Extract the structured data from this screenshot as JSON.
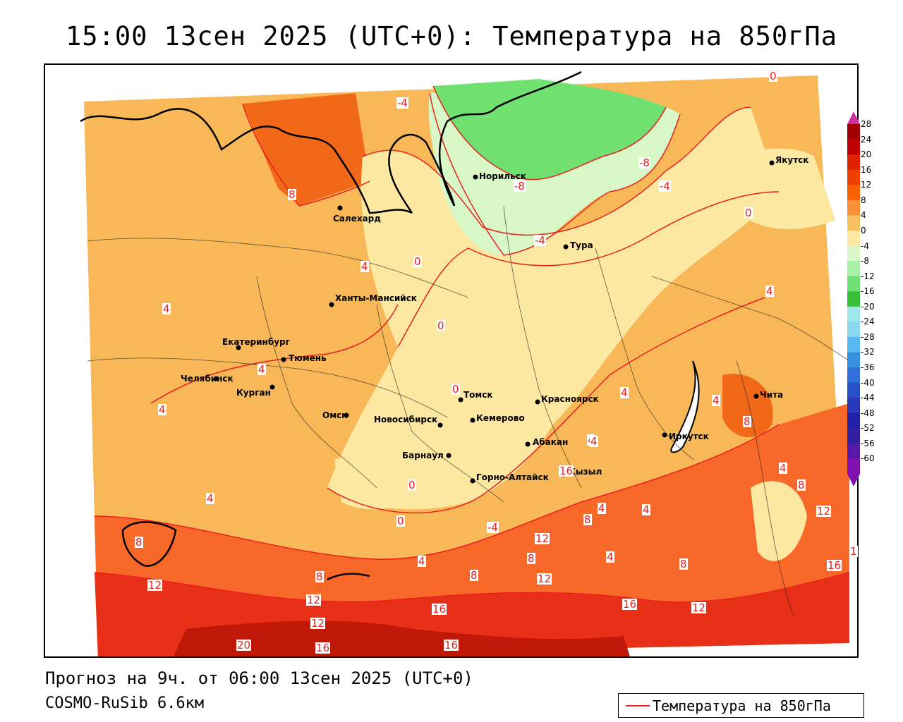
{
  "title": "15:00 13сен 2025 (UTC+0): Температура на 850гПа",
  "footer": {
    "forecast": "Прогноз на 9ч. от 06:00 13сен 2025 (UTC+0)",
    "model": "COSMO-RuSib 6.6км"
  },
  "legend": {
    "label": "Температура на 850гПа",
    "line_color": "#e82020"
  },
  "colorbar": {
    "ticks": [
      "28",
      "24",
      "20",
      "16",
      "12",
      "8",
      "4",
      "0",
      "-4",
      "-8",
      "-12",
      "-16",
      "-20",
      "-24",
      "-28",
      "-32",
      "-36",
      "-40",
      "-44",
      "-48",
      "-52",
      "-56",
      "-60"
    ],
    "colors": [
      "#a00000",
      "#c00000",
      "#e02000",
      "#f04000",
      "#f86000",
      "#f89038",
      "#f8c060",
      "#fce8a0",
      "#d8f8c8",
      "#a8f0a8",
      "#70e070",
      "#38c038",
      "#a0e8e8",
      "#88d8f0",
      "#58b8f0",
      "#3890e0",
      "#3070d8",
      "#2850c8",
      "#2838b8",
      "#2020a8",
      "#3020a0",
      "#5818a8",
      "#8010b0"
    ],
    "arrow_top_color": "#d030a0",
    "arrow_bottom_color": "#8010b0"
  },
  "cities": [
    {
      "name": "Салехард"
    },
    {
      "name": "Норильск"
    },
    {
      "name": "Якутск"
    },
    {
      "name": "Тура"
    },
    {
      "name": "Ханты-Мансийск"
    },
    {
      "name": "Екатеринбург"
    },
    {
      "name": "Тюмень"
    },
    {
      "name": "Челябинск"
    },
    {
      "name": "Курган"
    },
    {
      "name": "Омск"
    },
    {
      "name": "Новосибирск"
    },
    {
      "name": "Томск"
    },
    {
      "name": "Кемерово"
    },
    {
      "name": "Красноярск"
    },
    {
      "name": "Абакан"
    },
    {
      "name": "Барнаул"
    },
    {
      "name": "Горно-Алтайск"
    },
    {
      "name": "Кызыл"
    },
    {
      "name": "Иркутск"
    },
    {
      "name": "Чита"
    }
  ],
  "isotherm_labels": [
    "-4",
    "0",
    "8",
    "4",
    "0",
    "-8",
    "-8",
    "-4",
    "0",
    "-4",
    "4",
    "0",
    "4",
    "0",
    "4",
    "4",
    "4",
    "0",
    "0",
    "4",
    "8",
    "4",
    "8",
    "4",
    "4",
    "8",
    "12",
    "16",
    "1",
    "12",
    "8",
    "12",
    "8",
    "12",
    "16",
    "16",
    "20",
    "16",
    "16",
    "12",
    "16",
    "12",
    "12",
    "8",
    "8",
    "4",
    "4",
    "8",
    "4",
    "4",
    "-4",
    "4"
  ]
}
